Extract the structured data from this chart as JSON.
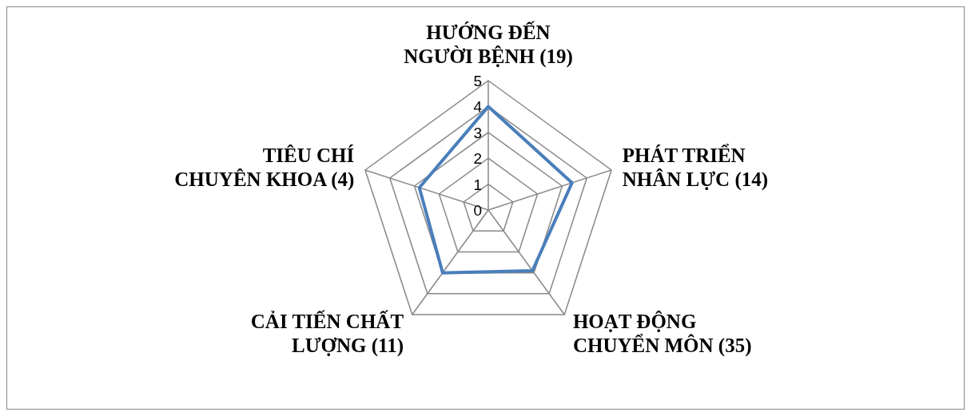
{
  "chart_data": {
    "type": "radar",
    "categories": [
      "HƯỚNG ĐẾN NGƯỜI BỆNH (19)",
      "PHÁT TRIỂN NHÂN LỰC (14)",
      "HOẠT ĐỘNG CHUYỂN MÔN (35)",
      "CẢI TIẾN CHẤT LƯỢNG (11)",
      "TIÊU CHÍ CHUYÊN KHOA (4)"
    ],
    "series": [
      {
        "color": "#4a7ebb",
        "values": [
          4.0,
          3.4,
          2.9,
          3.0,
          2.8
        ]
      }
    ],
    "ylim": [
      0,
      5
    ],
    "yticks": [
      0,
      1,
      2,
      3,
      4,
      5
    ],
    "grid": true,
    "legend": false,
    "marker": "none"
  }
}
